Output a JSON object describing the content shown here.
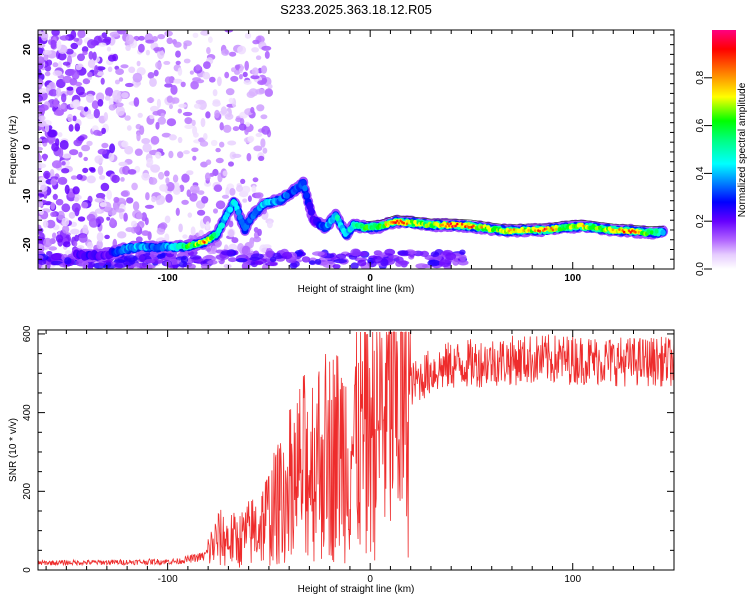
{
  "title": "S233.2025.363.18.12.R05",
  "chart_data": [
    {
      "type": "heatmap",
      "xlabel": "Height of straight line (km)",
      "ylabel": "Frequency (Hz)",
      "xlim": [
        -164,
        150
      ],
      "ylim": [
        -25,
        24
      ],
      "xticks": [
        -100,
        0,
        100
      ],
      "yticks": [
        20,
        10,
        0,
        -10,
        -20
      ],
      "ridge": [
        {
          "x": -145,
          "f": -22,
          "a": 0.2
        },
        {
          "x": -138,
          "f": -22.3,
          "a": 0.25
        },
        {
          "x": -130,
          "f": -22,
          "a": 0.2
        },
        {
          "x": -122,
          "f": -21,
          "a": 0.35
        },
        {
          "x": -114,
          "f": -20.5,
          "a": 0.4
        },
        {
          "x": -104,
          "f": -20.5,
          "a": 0.3
        },
        {
          "x": -96,
          "f": -20.5,
          "a": 0.45
        },
        {
          "x": -88,
          "f": -20.2,
          "a": 0.6
        },
        {
          "x": -82,
          "f": -19.5,
          "a": 0.8
        },
        {
          "x": -76,
          "f": -18,
          "a": 0.5
        },
        {
          "x": -72,
          "f": -15,
          "a": 0.4
        },
        {
          "x": -67,
          "f": -11,
          "a": 0.45
        },
        {
          "x": -62,
          "f": -17,
          "a": 0.3
        },
        {
          "x": -58,
          "f": -14,
          "a": 0.35
        },
        {
          "x": -52,
          "f": -11.5,
          "a": 0.4
        },
        {
          "x": -45,
          "f": -11,
          "a": 0.35
        },
        {
          "x": -38,
          "f": -9,
          "a": 0.3
        },
        {
          "x": -33,
          "f": -7.5,
          "a": 0.35
        },
        {
          "x": -28,
          "f": -15,
          "a": 0.2
        },
        {
          "x": -22,
          "f": -16.5,
          "a": 0.35
        },
        {
          "x": -17,
          "f": -14,
          "a": 0.45
        },
        {
          "x": -12,
          "f": -18,
          "a": 0.4
        },
        {
          "x": -8,
          "f": -16,
          "a": 0.5
        },
        {
          "x": -2,
          "f": -16.5,
          "a": 0.6
        },
        {
          "x": 5,
          "f": -16.3,
          "a": 0.55
        },
        {
          "x": 12,
          "f": -15.3,
          "a": 0.9
        },
        {
          "x": 20,
          "f": -15.5,
          "a": 0.7
        },
        {
          "x": 30,
          "f": -16,
          "a": 0.6
        },
        {
          "x": 40,
          "f": -16,
          "a": 0.85
        },
        {
          "x": 50,
          "f": -16.2,
          "a": 0.8
        },
        {
          "x": 60,
          "f": -16.8,
          "a": 0.65
        },
        {
          "x": 68,
          "f": -17.2,
          "a": 0.75
        },
        {
          "x": 78,
          "f": -17,
          "a": 0.7
        },
        {
          "x": 87,
          "f": -17,
          "a": 0.85
        },
        {
          "x": 95,
          "f": -16.5,
          "a": 0.6
        },
        {
          "x": 104,
          "f": -16.2,
          "a": 0.8
        },
        {
          "x": 112,
          "f": -16.6,
          "a": 0.6
        },
        {
          "x": 120,
          "f": -17,
          "a": 0.7
        },
        {
          "x": 128,
          "f": -17.2,
          "a": 0.85
        },
        {
          "x": 136,
          "f": -17.5,
          "a": 0.6
        },
        {
          "x": 145,
          "f": -17.5,
          "a": 0.45
        }
      ]
    },
    {
      "type": "line",
      "xlabel": "Height of straight line (km)",
      "ylabel": "SNR (10 * v/v)",
      "xlim": [
        -164,
        150
      ],
      "ylim": [
        0,
        610
      ],
      "xticks": [
        -100,
        0,
        100
      ],
      "yticks": [
        0,
        200,
        400,
        600
      ],
      "color": "#ee2c2c",
      "envelope": [
        {
          "x": -164,
          "y": 18
        },
        {
          "x": -120,
          "y": 20
        },
        {
          "x": -95,
          "y": 22
        },
        {
          "x": -82,
          "y": 35
        },
        {
          "x": -75,
          "y": 80
        },
        {
          "x": -65,
          "y": 75
        },
        {
          "x": -55,
          "y": 110
        },
        {
          "x": -45,
          "y": 170
        },
        {
          "x": -35,
          "y": 250
        },
        {
          "x": -25,
          "y": 290
        },
        {
          "x": -15,
          "y": 300
        },
        {
          "x": -8,
          "y": 320
        },
        {
          "x": 0,
          "y": 360
        },
        {
          "x": 10,
          "y": 420
        },
        {
          "x": 20,
          "y": 470
        },
        {
          "x": 30,
          "y": 505
        },
        {
          "x": 40,
          "y": 520
        },
        {
          "x": 60,
          "y": 530
        },
        {
          "x": 80,
          "y": 535
        },
        {
          "x": 100,
          "y": 535
        },
        {
          "x": 125,
          "y": 530
        },
        {
          "x": 150,
          "y": 530
        }
      ]
    }
  ],
  "colorbar": {
    "label": "Normalized spectral amplitude",
    "range": [
      0,
      1
    ],
    "ticks": [
      "0.0",
      "0.2",
      "0.4",
      "0.6",
      "0.8"
    ]
  }
}
